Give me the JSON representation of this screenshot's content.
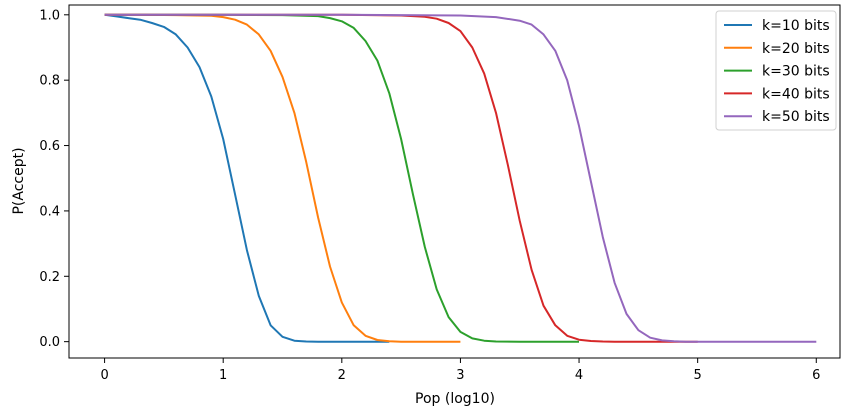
{
  "chart_data": {
    "type": "line",
    "title": "",
    "xlabel": "Pop (log10)",
    "ylabel": "P(Accept)",
    "xlim": [
      -0.3,
      6.2
    ],
    "ylim": [
      -0.05,
      1.03
    ],
    "xticks": [
      "0",
      "1",
      "2",
      "3",
      "4",
      "5",
      "6"
    ],
    "yticks": [
      "0.0",
      "0.2",
      "0.4",
      "0.6",
      "0.8",
      "1.0"
    ],
    "grid": false,
    "legend_position": "top-right",
    "series": [
      {
        "name": "k=10 bits",
        "color": "#1f77b4",
        "x": [
          0,
          0.1,
          0.2,
          0.3,
          0.4,
          0.5,
          0.6,
          0.7,
          0.8,
          0.9,
          1.0,
          1.1,
          1.2,
          1.3,
          1.4,
          1.5,
          1.6,
          1.7,
          1.8,
          2.0,
          2.2,
          2.4
        ],
        "y": [
          1.0,
          0.995,
          0.99,
          0.985,
          0.975,
          0.963,
          0.94,
          0.9,
          0.84,
          0.75,
          0.62,
          0.45,
          0.28,
          0.14,
          0.05,
          0.015,
          0.003,
          0.0005,
          0.0,
          0.0,
          0.0,
          0.0
        ]
      },
      {
        "name": "k=20 bits",
        "color": "#ff7f0e",
        "x": [
          0,
          0.3,
          0.6,
          0.9,
          1.0,
          1.1,
          1.2,
          1.3,
          1.4,
          1.5,
          1.6,
          1.7,
          1.8,
          1.9,
          2.0,
          2.1,
          2.2,
          2.3,
          2.4,
          2.5,
          2.6,
          2.8,
          3.0
        ],
        "y": [
          1.0,
          1.0,
          0.999,
          0.997,
          0.993,
          0.985,
          0.97,
          0.94,
          0.89,
          0.81,
          0.7,
          0.55,
          0.38,
          0.23,
          0.12,
          0.05,
          0.018,
          0.005,
          0.001,
          0.0,
          0.0,
          0.0,
          0.0
        ]
      },
      {
        "name": "k=30 bits",
        "color": "#2ca02c",
        "x": [
          0,
          0.5,
          1.0,
          1.5,
          1.8,
          1.9,
          2.0,
          2.1,
          2.2,
          2.3,
          2.4,
          2.5,
          2.6,
          2.7,
          2.8,
          2.9,
          3.0,
          3.1,
          3.2,
          3.3,
          3.5,
          3.8,
          4.0
        ],
        "y": [
          1.0,
          1.0,
          1.0,
          0.999,
          0.996,
          0.99,
          0.98,
          0.96,
          0.92,
          0.86,
          0.76,
          0.62,
          0.45,
          0.29,
          0.16,
          0.075,
          0.03,
          0.01,
          0.003,
          0.0005,
          0.0,
          0.0,
          0.0
        ]
      },
      {
        "name": "k=40 bits",
        "color": "#d62728",
        "x": [
          0,
          1.0,
          2.0,
          2.5,
          2.7,
          2.8,
          2.9,
          3.0,
          3.1,
          3.2,
          3.3,
          3.4,
          3.5,
          3.6,
          3.7,
          3.8,
          3.9,
          4.0,
          4.1,
          4.2,
          4.3,
          4.5,
          4.7,
          5.0
        ],
        "y": [
          1.0,
          1.0,
          1.0,
          0.998,
          0.994,
          0.988,
          0.975,
          0.95,
          0.9,
          0.82,
          0.7,
          0.54,
          0.37,
          0.22,
          0.11,
          0.05,
          0.018,
          0.006,
          0.002,
          0.0005,
          0.0,
          0.0,
          0.0,
          0.0
        ]
      },
      {
        "name": "k=50 bits",
        "color": "#9467bd",
        "x": [
          0,
          1.0,
          2.0,
          3.0,
          3.3,
          3.5,
          3.6,
          3.7,
          3.8,
          3.9,
          4.0,
          4.1,
          4.2,
          4.3,
          4.4,
          4.5,
          4.6,
          4.7,
          4.8,
          4.9,
          5.0,
          5.5,
          6.0
        ],
        "y": [
          1.0,
          1.0,
          1.0,
          0.998,
          0.993,
          0.982,
          0.97,
          0.94,
          0.89,
          0.8,
          0.66,
          0.49,
          0.32,
          0.18,
          0.085,
          0.035,
          0.012,
          0.004,
          0.001,
          0.0,
          0.0,
          0.0,
          0.0
        ]
      }
    ]
  }
}
